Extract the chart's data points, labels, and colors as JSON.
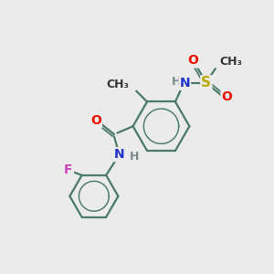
{
  "bg_color": "#ebebeb",
  "bond_color": "#4a7a6a",
  "bond_width": 1.6,
  "atom_colors": {
    "O": "#ee1100",
    "N": "#2233cc",
    "S": "#bbaa00",
    "F": "#cc44bb",
    "H": "#7a8a8a",
    "C": "#333333"
  },
  "font_size": 10,
  "bold": true
}
